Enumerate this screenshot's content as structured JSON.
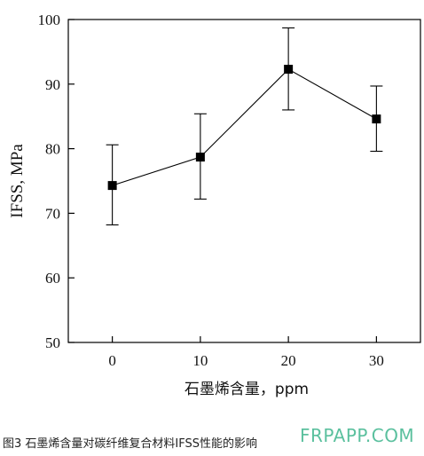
{
  "chart_data": {
    "type": "line",
    "title": "",
    "xlabel": "石墨烯含量，ppm",
    "ylabel": "IFSS, MPa",
    "x": [
      0,
      10,
      20,
      30
    ],
    "xticks": [
      "0",
      "10",
      "20",
      "30"
    ],
    "xlim": [
      -5,
      35
    ],
    "ylim": [
      50,
      100
    ],
    "yticks": [
      "50",
      "60",
      "70",
      "80",
      "90",
      "100"
    ],
    "series": [
      {
        "values": [
          74.3,
          78.7,
          92.3,
          84.6
        ],
        "error_low": [
          68.2,
          72.2,
          86.0,
          79.6
        ],
        "error_high": [
          80.6,
          85.4,
          98.7,
          89.7
        ],
        "marker": "square",
        "color": "#000000"
      }
    ],
    "grid": false
  },
  "caption": "图3 石墨烯含量对碳纤维复合材料IFSS性能的影响",
  "watermark": "FRPAPP.COM"
}
